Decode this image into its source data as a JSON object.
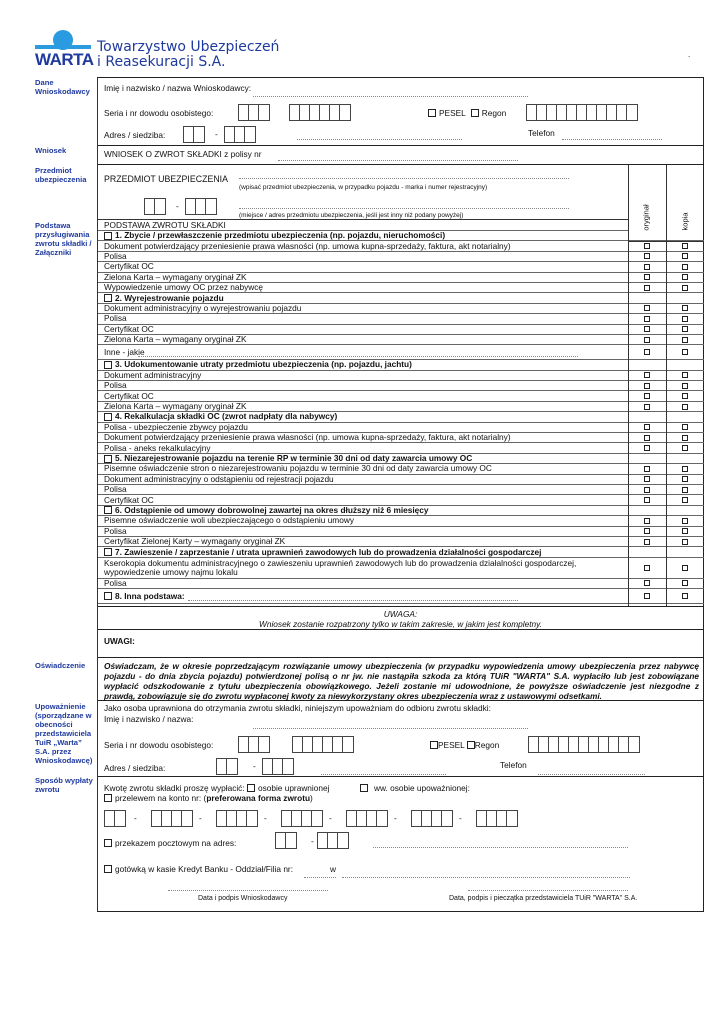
{
  "header": {
    "brand": "WARTA",
    "company_line1": "Towarzystwo Ubezpieczeń",
    "company_line2": "i Reasekuracji S.A.",
    "brand_color": "#1f3a9e"
  },
  "side_labels": {
    "dane": "Dane Wnioskodawcy",
    "wniosek": "Wniosek",
    "przedmiot": "Przedmiot ubezpieczenia",
    "podstawa": "Podstawa przysługiwania zwrotu składki / Załączniki",
    "oswiadczenie": "Oświadczenie",
    "upowaznienie": "Upoważnienie (sporządzane w obecności przedstawiciela TuiR „Warta” S.A. przez Wnioskodawcę)",
    "sposob": "Sposób wypłaty zwrotu"
  },
  "applicant": {
    "name_label": "Imię i nazwisko / nazwa Wnioskodawcy:",
    "id_label": "Seria i nr dowodu osobistego:",
    "pesel": "PESEL",
    "regon": "Regon",
    "address_label": "Adres / siedziba:",
    "phone_label": "Telefon"
  },
  "request": {
    "label": "WNIOSEK O ZWROT SKŁADKI z polisy nr"
  },
  "subject": {
    "label": "PRZEDMIOT UBEZPIECZENIA",
    "hint1": "(wpisać przedmiot ubezpieczenia, w przypadku pojazdu - marka i numer rejestracyjny)",
    "hint2": "(miejsce / adres przedmiotu ubezpieczenia, jeśli jest inny niż podany powyżej)",
    "col_original": "oryginał",
    "col_copy": "kopia"
  },
  "basis": {
    "title": "PODSTAWA ZWROTU SKŁADKI",
    "rows": [
      {
        "text": "1. Zbycie / przewłaszczenie przedmiotu ubezpieczenia (np. pojazdu, nieruchomości)",
        "type": "h"
      },
      {
        "text": "Dokument potwierdzający przeniesienie prawa własności (np. umowa kupna-sprzedaży, faktura, akt notarialny)"
      },
      {
        "text": "Polisa"
      },
      {
        "text": "Certyfikat OC"
      },
      {
        "text": "Zielona Karta – wymagany oryginał ZK"
      },
      {
        "text": "Wypowiedzenie umowy OC przez nabywcę"
      },
      {
        "text": "2. Wyrejestrowanie pojazdu",
        "type": "h"
      },
      {
        "text": "Dokument administracyjny o wyrejestrowaniu pojazdu"
      },
      {
        "text": "Polisa"
      },
      {
        "text": "Certyfikat OC"
      },
      {
        "text": "Zielona Karta – wymagany oryginał ZK"
      },
      {
        "text": "Inne - jakie",
        "type": "tall"
      },
      {
        "text": "3. Udokumentowanie utraty przedmiotu ubezpieczenia (np. pojazdu, jachtu)",
        "type": "h"
      },
      {
        "text": "Dokument administracyjny"
      },
      {
        "text": "Polisa"
      },
      {
        "text": "Certyfikat OC"
      },
      {
        "text": "Zielona Karta – wymagany oryginał ZK"
      },
      {
        "text": "4. Rekalkulacja składki OC (zwrot nadpłaty dla nabywcy)",
        "type": "h"
      },
      {
        "text": "Polisa - ubezpieczenie zbywcy pojazdu"
      },
      {
        "text": "Dokument potwierdzający przeniesienie prawa własności (np. umowa kupna-sprzedaży, faktura, akt notarialny)"
      },
      {
        "text": "Polisa - aneks rekalkulacyjny"
      },
      {
        "text": "5. Niezarejestrowanie pojazdu na terenie RP w terminie 30 dni od daty zawarcia umowy OC",
        "type": "h"
      },
      {
        "text": "Pisemne oświadczenie stron o niezarejestrowaniu pojazdu w terminie 30 dni od daty zawarcia umowy OC"
      },
      {
        "text": "Dokument administracyjny o odstąpieniu od rejestracji pojazdu"
      },
      {
        "text": "Polisa"
      },
      {
        "text": "Certyfikat OC"
      },
      {
        "text": "6. Odstąpienie od umowy dobrowolnej zawartej na okres dłuższy niż 6 miesięcy",
        "type": "h"
      },
      {
        "text": "Pisemne oświadczenie woli ubezpieczającego o odstąpieniu umowy"
      },
      {
        "text": "Polisa"
      },
      {
        "text": "Certyfikat Zielonej Karty – wymagany oryginał ZK"
      },
      {
        "text": "7. Zawieszenie / zaprzestanie / utrata uprawnień zawodowych lub do prowadzenia działalności gospodarczej",
        "type": "h"
      },
      {
        "text": "Kserokopia dokumentu administracyjnego o zawieszeniu uprawnień zawodowych lub do prowadzenia działalności gospodarczej, wypowiedzenie umowy najmu lokalu",
        "type": "double"
      },
      {
        "text": "Polisa"
      },
      {
        "text": "8. Inna podstawa:",
        "type": "h8"
      }
    ]
  },
  "notice": {
    "title": "UWAGA:",
    "text": "Wniosek zostanie rozpatrzony tylko w takim zakresie, w jakim jest kompletny."
  },
  "remarks": {
    "label": "UWAGI:"
  },
  "declaration": {
    "text": "Oświadczam, że w okresie poprzedzającym rozwiązanie umowy ubezpieczenia (w przypadku wypowiedzenia umowy ubezpieczenia przez nabywcę pojazdu - do dnia zbycia pojazdu) potwierdzonej polisą o nr jw. nie nastąpiła szkoda za którą TUiR \"WARTA\" S.A. wypłaciło lub jest zobowiązane wypłacić odszkodowanie z tytułu ubezpieczenia obowiązkowego. Jeżeli zostanie mi udowodnione, że powyższe oświadczenie jest niezgodne z prawdą, zobowiązuje się do zwrotu wypłaconej kwoty za niewykorzystany okres ubezpieczenia wraz z ustawowymi odsetkami."
  },
  "authorization": {
    "intro": "Jako osoba uprawniona do otrzymania zwrotu składki, niniejszym upoważniam do odbioru zwrotu składki:",
    "name_label": "Imię i nazwisko / nazwa:",
    "id_label": "Seria i nr dowodu osobistego:",
    "pesel": "PESEL",
    "regon": "Regon",
    "address_label": "Adres / siedziba:",
    "phone_label": "Telefon"
  },
  "payout": {
    "intro": "Kwotę zwrotu składki proszę wypłacić:",
    "opt_entitled": "osobie uprawnionej",
    "opt_authorized": "ww. osobie upoważnionej:",
    "transfer_a": "przelewem na konto nr: (",
    "transfer_b": "preferowana forma zwrotu",
    "transfer_c": ")",
    "postal": "przekazem pocztowym na adres:",
    "cash": "gotówką w kasie Kredyt Banku - Oddział/Filia nr:",
    "w": "w"
  },
  "signatures": {
    "applicant": "Data i podpis Wnioskodawcy",
    "agent": "Data, podpis i pieczątka przedstawiciela TUiR \"WARTA\" S.A."
  }
}
